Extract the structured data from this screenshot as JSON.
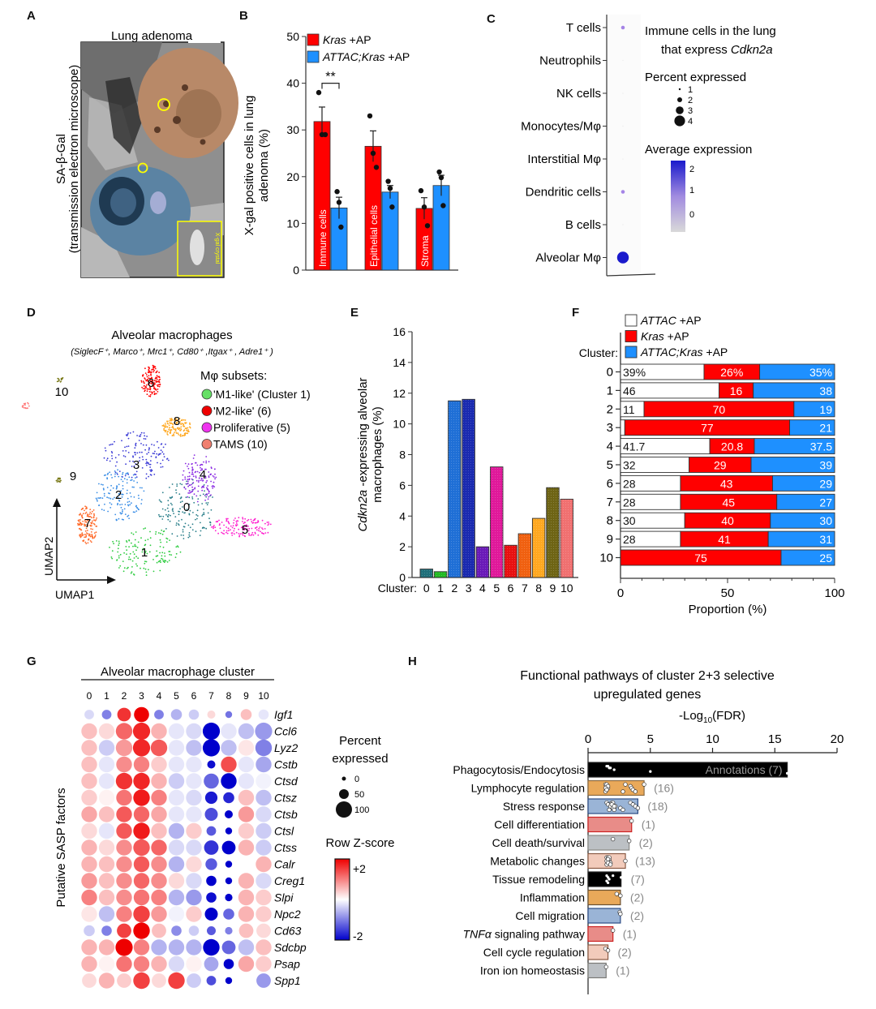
{
  "chart_data": [
    {
      "panel": "A",
      "type": "image",
      "title": "Lung adenoma",
      "ylabel": "SA-β-Gal (transmission electron microscope)",
      "inset_label": "X-gal crystal"
    },
    {
      "panel": "B",
      "type": "bar",
      "ylabel": "X-gal positive cells in lung adenoma (%)",
      "ylim": [
        0,
        50
      ],
      "yticks": [
        0,
        10,
        20,
        30,
        40,
        50
      ],
      "categories": [
        "Immune cells",
        "Epithelial cells",
        "Stroma"
      ],
      "series": [
        {
          "name": "Kras +AP",
          "color": "#ff0000",
          "values": [
            31.8,
            26.5,
            13.2
          ],
          "errors": [
            3.1,
            3.3,
            2.3
          ],
          "points": [
            [
              38,
              29,
              29
            ],
            [
              33,
              25,
              22
            ],
            [
              17,
              13.5,
              9.5
            ]
          ]
        },
        {
          "name": "ATTAC;Kras +AP",
          "color": "#1e90ff",
          "values": [
            13.3,
            16.7,
            18.1
          ],
          "errors": [
            2.3,
            1.4,
            2.2
          ],
          "points": [
            [
              16.8,
              14.5,
              9.2
            ],
            [
              19,
              17.5,
              13.5
            ],
            [
              21,
              19.8,
              13.8
            ]
          ]
        }
      ],
      "significance": [
        {
          "category": "Immune cells",
          "label": "**"
        }
      ]
    },
    {
      "panel": "C",
      "type": "scatter",
      "title": "Immune cells in the lung that express Cdkn2a",
      "categories": [
        "T cells",
        "Neutrophils",
        "NK cells",
        "Monocytes/Mφ",
        "Interstitial Mφ",
        "Dendritic cells",
        "B cells",
        "Alveolar Mφ"
      ],
      "percent_expressed": [
        0.4,
        0.05,
        0.05,
        0.05,
        0.05,
        0.4,
        0.05,
        4
      ],
      "average_expression": [
        0.3,
        -0.5,
        -0.5,
        -0.5,
        -0.5,
        0.3,
        -0.5,
        2.2
      ],
      "size_legend": {
        "title": "Percent expressed",
        "values": [
          1,
          2,
          3,
          4
        ]
      },
      "color_legend": {
        "title": "Average expression",
        "ticks": [
          2,
          1,
          0
        ],
        "low_color": "#d9d9d9",
        "high_color": "#1a1acc"
      }
    },
    {
      "panel": "D",
      "type": "scatter",
      "title": "Alveolar macrophages",
      "subtitle": "(SiglecF⁺, Marco⁺, Mrc1⁺, Cd80⁺ ,Itgax⁺ , Adre1⁺ )",
      "xlabel": "UMAP1",
      "ylabel": "UMAP2",
      "clusters": [
        {
          "id": "0",
          "color": "#2a7f8a"
        },
        {
          "id": "1",
          "color": "#2ecc40"
        },
        {
          "id": "2",
          "color": "#3a8ee6"
        },
        {
          "id": "3",
          "color": "#3a3ad6"
        },
        {
          "id": "4",
          "color": "#8a2be2"
        },
        {
          "id": "5",
          "color": "#ff1dce"
        },
        {
          "id": "6",
          "color": "#ff0000"
        },
        {
          "id": "7",
          "color": "#ff6a2a"
        },
        {
          "id": "8",
          "color": "#ffa820"
        },
        {
          "id": "9",
          "color": "#7a7a1a"
        },
        {
          "id": "10",
          "color": "#ff7b7b"
        }
      ],
      "legend_title": "Mφ subsets:",
      "legend": [
        {
          "label": "'M1-like' (Cluster 1)",
          "color": "#66e066"
        },
        {
          "label": "'M2-like' (6)",
          "color": "#ee0000"
        },
        {
          "label": "Proliferative (5)",
          "color": "#ee33ee"
        },
        {
          "label": "TAMS (10)",
          "color": "#f08070"
        }
      ]
    },
    {
      "panel": "E",
      "type": "bar",
      "ylabel": "Cdkn2a -expressing alveolar macrophages (%)",
      "xlabel_prefix": "Cluster:",
      "ylim": [
        0,
        16
      ],
      "yticks": [
        0,
        2,
        4,
        6,
        8,
        10,
        12,
        14,
        16
      ],
      "categories": [
        "0",
        "1",
        "2",
        "3",
        "4",
        "5",
        "6",
        "7",
        "8",
        "9",
        "10"
      ],
      "values": [
        0.55,
        0.38,
        11.5,
        11.6,
        2.0,
        7.2,
        2.1,
        2.85,
        3.85,
        5.85,
        5.1
      ],
      "colors": [
        "#1f6f7a",
        "#22bb22",
        "#1f6fd6",
        "#1a2ab0",
        "#6a1ab8",
        "#e0189a",
        "#e81010",
        "#f06010",
        "#ffa820",
        "#6e6414",
        "#f07070"
      ]
    },
    {
      "panel": "F",
      "type": "bar",
      "orientation": "horizontal-stacked",
      "xlabel": "Proportion (%)",
      "ylabel_prefix": "Cluster:",
      "xlim": [
        0,
        100
      ],
      "xticks": [
        0,
        50,
        100
      ],
      "categories": [
        "0",
        "1",
        "2",
        "3",
        "4",
        "5",
        "6",
        "7",
        "8",
        "9",
        "10"
      ],
      "series": [
        {
          "name": "ATTAC +AP",
          "color": "#ffffff",
          "values": [
            39,
            46,
            11,
            2,
            41.7,
            32,
            28,
            28,
            30,
            28,
            0
          ],
          "labels": [
            "39%",
            "46",
            "11",
            "",
            "41.7",
            "32",
            "28",
            "28",
            "30",
            "28",
            ""
          ]
        },
        {
          "name": "Kras +AP",
          "color": "#ff0000",
          "values": [
            26,
            16,
            70,
            77,
            20.8,
            29,
            43,
            45,
            40,
            41,
            75
          ],
          "labels": [
            "26%",
            "16",
            "70",
            "77",
            "20.8",
            "29",
            "43",
            "45",
            "40",
            "41",
            "75"
          ]
        },
        {
          "name": "ATTAC;Kras +AP",
          "color": "#1e90ff",
          "values": [
            35,
            38,
            19,
            21,
            37.5,
            39,
            29,
            27,
            30,
            31,
            25
          ],
          "labels": [
            "35%",
            "38",
            "19",
            "21",
            "37.5",
            "39",
            "29",
            "27",
            "30",
            "31",
            "25"
          ]
        }
      ]
    },
    {
      "panel": "G",
      "type": "heatmap",
      "title": "Alveolar macrophage cluster",
      "ylabel": "Putative SASP factors",
      "columns": [
        "0",
        "1",
        "2",
        "3",
        "4",
        "5",
        "6",
        "7",
        "8",
        "9",
        "10"
      ],
      "rows": [
        "Igf1",
        "Ccl6",
        "Lyz2",
        "Cstb",
        "Ctsd",
        "Ctsz",
        "Ctsb",
        "Ctsl",
        "Ctss",
        "Calr",
        "Creg1",
        "Slpi",
        "Npc2",
        "Cd63",
        "Sdcbp",
        "Psap",
        "Spp1"
      ],
      "zscore": [
        [
          -0.3,
          -1.0,
          1.6,
          2.0,
          -1.0,
          -0.6,
          -0.4,
          0.3,
          -1.1,
          0.5,
          -0.2
        ],
        [
          0.5,
          0.3,
          1.2,
          1.7,
          0.6,
          -0.2,
          -0.3,
          -2.0,
          -0.2,
          -0.5,
          -0.8
        ],
        [
          0.5,
          -0.4,
          0.8,
          1.7,
          1.3,
          -0.2,
          -0.5,
          -2.0,
          -0.5,
          0.2,
          -1.0
        ],
        [
          0.5,
          -0.2,
          0.9,
          1.0,
          0.4,
          -0.2,
          -0.2,
          -1.9,
          1.4,
          -0.2,
          -0.7
        ],
        [
          0.5,
          -0.2,
          1.6,
          1.7,
          0.6,
          -0.4,
          -0.2,
          -1.2,
          -2.0,
          -0.2,
          -0.1
        ],
        [
          0.4,
          0.1,
          1.1,
          1.8,
          1.0,
          -0.2,
          -0.3,
          -1.8,
          -1.7,
          0.5,
          -0.5
        ],
        [
          0.7,
          0.5,
          1.3,
          1.2,
          0.7,
          -0.2,
          -0.2,
          -1.4,
          -2.0,
          0.8,
          -0.3
        ],
        [
          0.3,
          -0.2,
          1.3,
          1.8,
          0.5,
          -0.6,
          0.4,
          -1.3,
          -2.0,
          0.4,
          -0.4
        ],
        [
          0.6,
          0.3,
          0.9,
          1.3,
          1.2,
          -0.3,
          -0.3,
          -1.6,
          -2.0,
          0.6,
          -0.4
        ],
        [
          0.6,
          0.5,
          0.9,
          1.3,
          0.9,
          -0.6,
          0.3,
          -1.3,
          -2.0,
          0.0,
          0.6
        ],
        [
          0.8,
          0.5,
          0.9,
          1.2,
          0.9,
          0.3,
          -0.3,
          -2.0,
          -2.0,
          0.6,
          -0.3
        ],
        [
          1.0,
          0.5,
          0.9,
          1.1,
          1.0,
          -0.6,
          -0.8,
          -1.9,
          -2.0,
          0.6,
          0.4
        ],
        [
          0.2,
          -0.5,
          1.0,
          1.5,
          0.8,
          -0.1,
          0.4,
          -2.0,
          -1.2,
          0.6,
          0.4
        ],
        [
          -0.4,
          -1.0,
          1.5,
          2.0,
          0.5,
          -0.9,
          -0.4,
          -1.3,
          -1.0,
          0.5,
          0.3
        ],
        [
          0.6,
          0.6,
          2.0,
          1.0,
          -0.6,
          -0.6,
          -0.6,
          -2.0,
          -1.2,
          -0.5,
          0.5
        ],
        [
          0.6,
          0.1,
          1.1,
          1.0,
          0.6,
          -0.3,
          0.1,
          -0.7,
          -2.0,
          0.7,
          0.4
        ],
        [
          0.3,
          0.6,
          0.4,
          1.5,
          0.3,
          1.5,
          -0.4,
          -1.4,
          -2.0,
          0.0,
          -0.8
        ]
      ],
      "percent": [
        [
          40,
          40,
          70,
          80,
          40,
          50,
          45,
          30,
          20,
          50,
          45
        ],
        [
          85,
          85,
          90,
          95,
          85,
          85,
          85,
          95,
          85,
          85,
          95
        ],
        [
          85,
          85,
          90,
          95,
          90,
          85,
          85,
          95,
          85,
          85,
          90
        ],
        [
          85,
          85,
          85,
          85,
          85,
          85,
          85,
          30,
          85,
          85,
          85
        ],
        [
          85,
          85,
          90,
          90,
          85,
          85,
          85,
          80,
          85,
          85,
          85
        ],
        [
          85,
          85,
          85,
          90,
          85,
          85,
          85,
          60,
          50,
          85,
          85
        ],
        [
          85,
          85,
          85,
          85,
          85,
          85,
          85,
          65,
          30,
          85,
          85
        ],
        [
          85,
          85,
          85,
          90,
          85,
          85,
          85,
          40,
          20,
          85,
          85
        ],
        [
          85,
          85,
          85,
          90,
          85,
          85,
          85,
          75,
          70,
          85,
          85
        ],
        [
          85,
          85,
          85,
          85,
          85,
          85,
          85,
          55,
          20,
          85,
          85
        ],
        [
          85,
          85,
          85,
          85,
          85,
          85,
          85,
          45,
          20,
          85,
          85
        ],
        [
          85,
          85,
          85,
          85,
          85,
          85,
          85,
          45,
          25,
          85,
          85
        ],
        [
          85,
          85,
          85,
          90,
          85,
          85,
          85,
          65,
          50,
          85,
          85
        ],
        [
          50,
          45,
          75,
          90,
          75,
          45,
          45,
          35,
          25,
          75,
          75
        ],
        [
          85,
          85,
          95,
          85,
          85,
          85,
          85,
          90,
          70,
          85,
          85
        ],
        [
          85,
          85,
          85,
          85,
          85,
          85,
          85,
          75,
          45,
          85,
          85
        ],
        [
          75,
          85,
          75,
          90,
          75,
          90,
          75,
          40,
          20,
          75,
          75
        ]
      ],
      "size_legend": {
        "title_line1": "Percent",
        "title_line2": "expressed",
        "values": [
          0,
          50,
          100
        ]
      },
      "color_legend": {
        "title": "Row Z-score",
        "max_label": "+2",
        "min_label": "-2",
        "high_color": "#ee0000",
        "mid_color": "#ffffff",
        "low_color": "#0000cc"
      }
    },
    {
      "panel": "H",
      "type": "bar",
      "orientation": "horizontal",
      "title_line1": "Functional pathways of cluster 2+3 selective",
      "title_line2": "upregulated genes",
      "xlabel": "-Log10(FDR)",
      "xlim": [
        0,
        20
      ],
      "xticks": [
        0,
        5,
        10,
        15,
        20
      ],
      "categories": [
        "Phagocytosis/Endocytosis",
        "Lymphocyte regulation",
        "Stress response",
        "Cell differentiation",
        "Cell death/survival",
        "Metabolic changes",
        "Tissue remodeling",
        "Inflammation",
        "Cell migration",
        "TNFα signaling pathway",
        "Cell cycle regulation",
        "Iron ion homeostasis"
      ],
      "values": [
        16,
        4.5,
        4.0,
        3.5,
        3.3,
        3.0,
        2.65,
        2.6,
        2.6,
        2.0,
        1.6,
        1.45
      ],
      "annotations": [
        "Annotations (7)",
        "(16)",
        "(18)",
        "(1)",
        "(2)",
        "(13)",
        "(7)",
        "(2)",
        "(2)",
        "(1)",
        "(2)",
        "(1)"
      ],
      "colors": [
        "#000000",
        "#e9a95a",
        "#9ab4d6",
        "#e88c88",
        "#bcc0c4",
        "#f2cbbb",
        "#000000",
        "#e9a95a",
        "#9ab4d6",
        "#e88c88",
        "#f2cbbb",
        "#bcc0c4"
      ],
      "border_colors": [
        "#222222",
        "#8a6a40",
        "#2c4c86",
        "#cc2222",
        "#8a8a86",
        "#8a5a44",
        "#222222",
        "#6a5030",
        "#2c4c86",
        "#cc2222",
        "#8a5a44",
        "#7a7a76"
      ],
      "points": [
        [
          1.5,
          1.8,
          2.1,
          5.0,
          16,
          1.6,
          1.7
        ],
        [
          1.4,
          1.5,
          1.6,
          1.5,
          1.4,
          1.5,
          1.6,
          1.4,
          1.5,
          2.8,
          3.0,
          3.4,
          3.5,
          3.6,
          3.8,
          4.5
        ],
        [
          1.5,
          1.6,
          1.8,
          2.0,
          2.1,
          1.9,
          2.0,
          2.2,
          2.6,
          2.8,
          3.4,
          3.6,
          3.8,
          4.0,
          1.7,
          2.0,
          1.9,
          2.1
        ],
        [
          3.5
        ],
        [
          2.0,
          3.3
        ],
        [
          1.5,
          1.6,
          1.7,
          1.8,
          1.5,
          1.6,
          1.7,
          1.5,
          1.6,
          1.8,
          1.7,
          1.6,
          3.0
        ],
        [
          1.5,
          1.6,
          1.7,
          1.5,
          1.6,
          2.0,
          2.65
        ],
        [
          2.3,
          2.6
        ],
        [
          2.55,
          2.6
        ],
        [
          2.0
        ],
        [
          1.4,
          1.6
        ],
        [
          1.45
        ]
      ]
    }
  ],
  "panel_labels": [
    "A",
    "B",
    "C",
    "D",
    "E",
    "F",
    "G",
    "H"
  ]
}
